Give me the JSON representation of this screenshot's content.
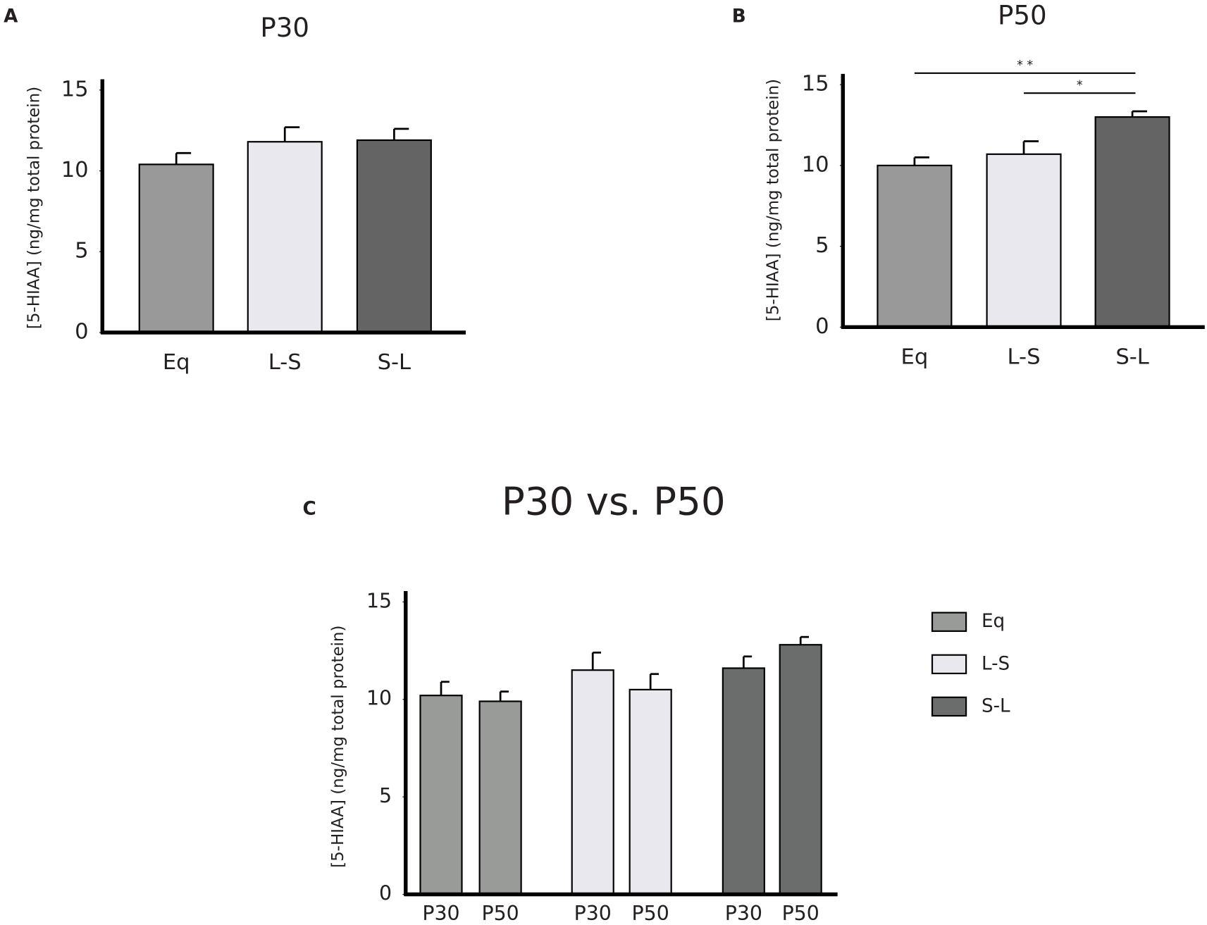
{
  "chart_data": [
    {
      "type": "bar",
      "panel": "A",
      "title": "P30",
      "ylabel": "[5-HIAA] (ng/mg total protein)",
      "categories": [
        "Eq",
        "L-S",
        "S-L"
      ],
      "values": [
        10.4,
        11.8,
        11.9
      ],
      "errors": [
        0.7,
        0.9,
        0.7
      ],
      "colors": [
        "#999999",
        "#e8e8ee",
        "#646464"
      ],
      "ylim": [
        0,
        15
      ],
      "yticks": [
        0,
        5,
        10,
        15
      ]
    },
    {
      "type": "bar",
      "panel": "B",
      "title": "P50",
      "ylabel": "[5-HIAA] (ng/mg total protein)",
      "categories": [
        "Eq",
        "L-S",
        "S-L"
      ],
      "values": [
        10.0,
        10.7,
        13.0
      ],
      "errors": [
        0.5,
        0.8,
        0.35
      ],
      "colors": [
        "#999999",
        "#e8e8ee",
        "#646464"
      ],
      "ylim": [
        0,
        15
      ],
      "yticks": [
        0,
        5,
        10,
        15
      ],
      "annotations": [
        "* *",
        "*"
      ]
    },
    {
      "type": "grouped_bar",
      "panel": "C",
      "title": "P30 vs. P50",
      "ylabel": "[5-HIAA] (ng/mg total protein)",
      "categories": [
        "P30",
        "P50"
      ],
      "series": [
        {
          "name": "Eq",
          "color": "#999b99",
          "values": [
            10.2,
            9.9
          ],
          "errors": [
            0.7,
            0.5
          ]
        },
        {
          "name": "L-S",
          "color": "#e8e8ee",
          "values": [
            11.5,
            10.5
          ],
          "errors": [
            0.9,
            0.8
          ]
        },
        {
          "name": "S-L",
          "color": "#6b6d6c",
          "values": [
            11.6,
            12.8
          ],
          "errors": [
            0.6,
            0.4
          ]
        }
      ],
      "ylim": [
        0,
        15
      ],
      "yticks": [
        0,
        5,
        10,
        15
      ]
    }
  ]
}
